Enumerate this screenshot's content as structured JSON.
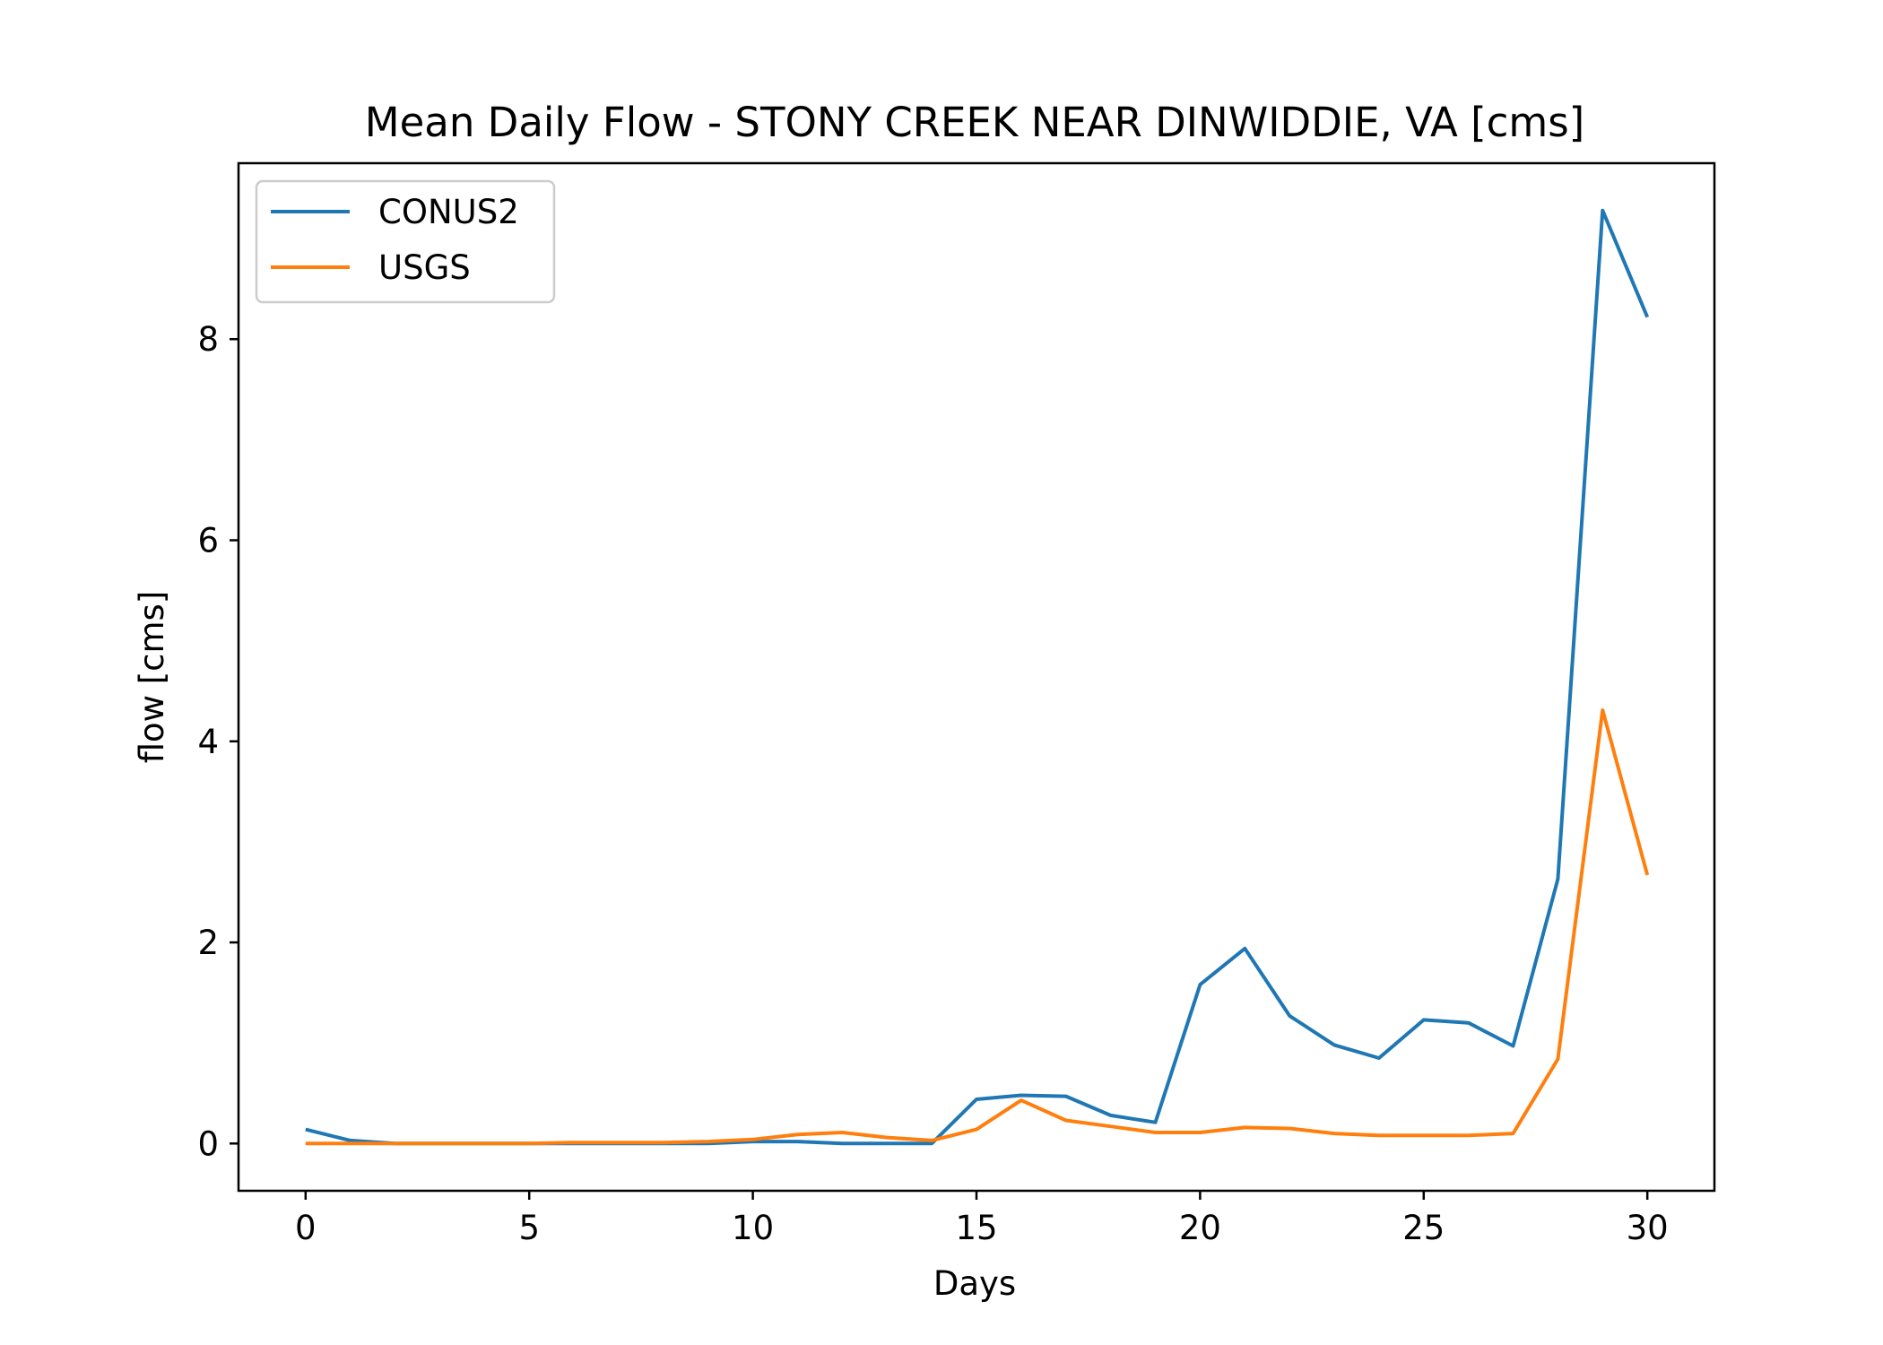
{
  "chart_data": {
    "type": "line",
    "title": "Mean Daily Flow - STONY CREEK NEAR DINWIDDIE, VA [cms]",
    "xlabel": "Days",
    "ylabel": "flow [cms]",
    "xlim": [
      -1.5,
      31.5
    ],
    "ylim": [
      -0.47,
      9.75
    ],
    "xticks": [
      0,
      5,
      10,
      15,
      20,
      25,
      30
    ],
    "yticks": [
      0,
      2,
      4,
      6,
      8
    ],
    "grid": false,
    "legend": "upper left",
    "x": [
      0,
      1,
      2,
      3,
      4,
      5,
      6,
      7,
      8,
      9,
      10,
      11,
      12,
      13,
      14,
      15,
      16,
      17,
      18,
      19,
      20,
      21,
      22,
      23,
      24,
      25,
      26,
      27,
      28,
      29,
      30
    ],
    "series": [
      {
        "name": "CONUS2",
        "color": "#1f77b4",
        "values": [
          0.14,
          0.03,
          0.0,
          0.0,
          0.0,
          0.0,
          0.0,
          0.0,
          0.0,
          0.0,
          0.02,
          0.02,
          0.0,
          0.0,
          0.0,
          0.44,
          0.48,
          0.47,
          0.28,
          0.21,
          1.58,
          1.94,
          1.27,
          0.98,
          0.85,
          1.23,
          1.2,
          0.97,
          2.63,
          9.28,
          8.22
        ]
      },
      {
        "name": "USGS",
        "color": "#ff7f0e",
        "values": [
          0.0,
          0.0,
          0.0,
          0.0,
          0.0,
          0.0,
          0.01,
          0.01,
          0.01,
          0.02,
          0.04,
          0.09,
          0.11,
          0.06,
          0.03,
          0.14,
          0.43,
          0.23,
          0.17,
          0.11,
          0.11,
          0.16,
          0.15,
          0.1,
          0.08,
          0.08,
          0.08,
          0.1,
          0.84,
          4.31,
          2.67
        ]
      }
    ]
  }
}
